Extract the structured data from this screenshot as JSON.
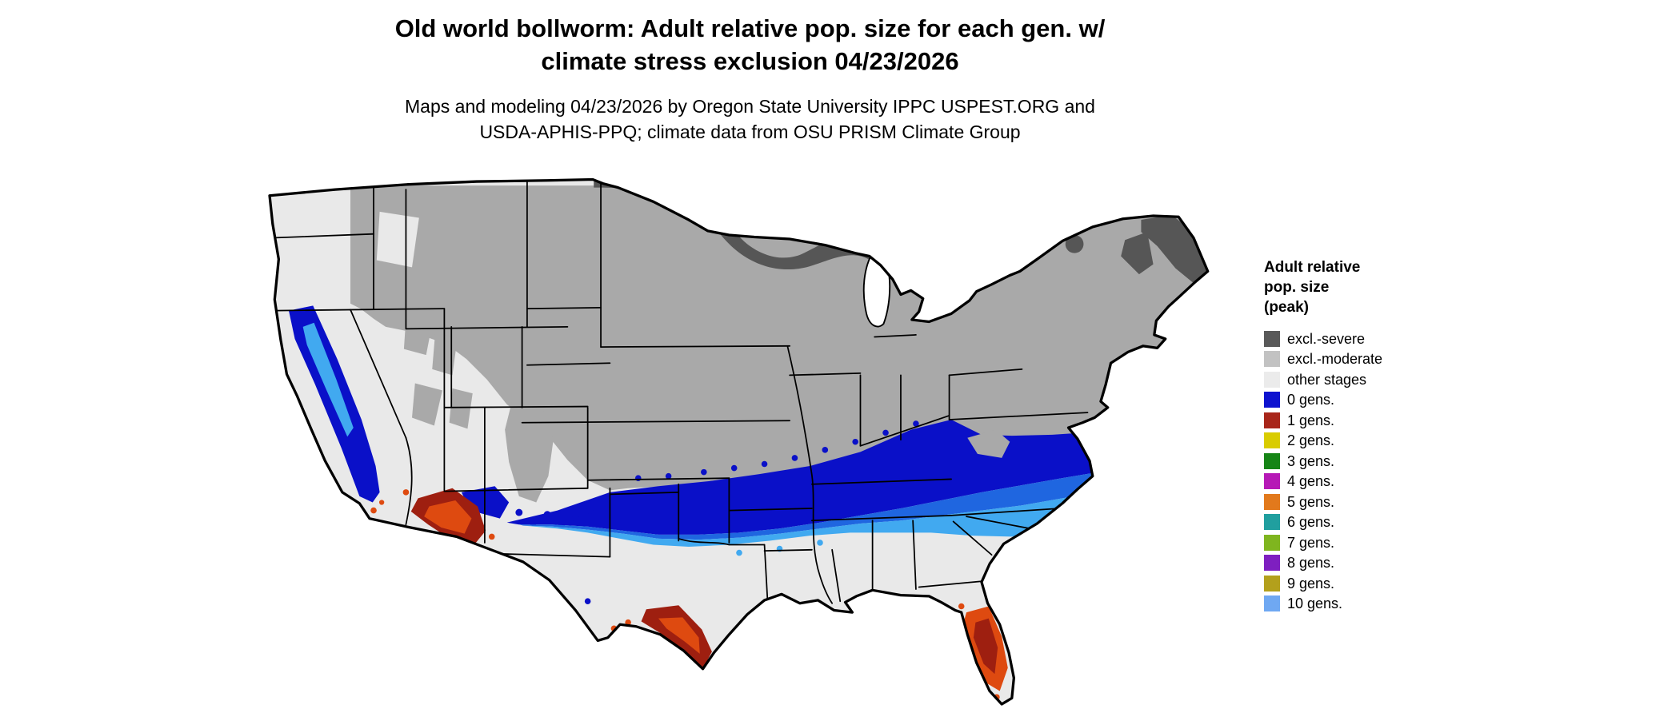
{
  "title": {
    "line1": "Old world bollworm: Adult relative pop. size for each gen. w/",
    "line2": "climate stress exclusion 04/23/2026"
  },
  "subtitle": {
    "line1": "Maps and modeling 04/23/2026 by Oregon State University IPPC USPEST.ORG and",
    "line2": "USDA-APHIS-PPQ; climate data from OSU PRISM Climate Group"
  },
  "legend": {
    "title_lines": [
      "Adult relative",
      "pop. size",
      "(peak)"
    ],
    "items": [
      {
        "label": "excl.-severe",
        "color": "#595959"
      },
      {
        "label": "excl.-moderate",
        "color": "#c2c2c2"
      },
      {
        "label": "other stages",
        "color": "#ebebeb"
      },
      {
        "label": "0 gens.",
        "color": "#0d12cf"
      },
      {
        "label": "1 gens.",
        "color": "#a8261a"
      },
      {
        "label": "2 gens.",
        "color": "#d9cc00"
      },
      {
        "label": "3 gens.",
        "color": "#168516"
      },
      {
        "label": "4 gens.",
        "color": "#b619b6"
      },
      {
        "label": "5 gens.",
        "color": "#e2791c"
      },
      {
        "label": "6 gens.",
        "color": "#209f9f"
      },
      {
        "label": "7 gens.",
        "color": "#7fb51f"
      },
      {
        "label": "8 gens.",
        "color": "#7e1fc0"
      },
      {
        "label": "9 gens.",
        "color": "#b3a01c"
      },
      {
        "label": "10 gens.",
        "color": "#6fa8f2"
      }
    ]
  },
  "map": {
    "name": "Continental United States map of adult relative population size per generation",
    "colors": {
      "base_other_stages": "#e9e9e9",
      "excl_moderate": "#a9a9a9",
      "excl_severe": "#565656",
      "gen0_dark": "#0a10c8",
      "gen0_mid": "#1f66e0",
      "gen0_light": "#41a9f0",
      "gen1_dark": "#9e1f10",
      "gen1_bright": "#de4a10",
      "state_border": "#000000",
      "outline": "#000000",
      "lake": "#ffffff"
    }
  }
}
